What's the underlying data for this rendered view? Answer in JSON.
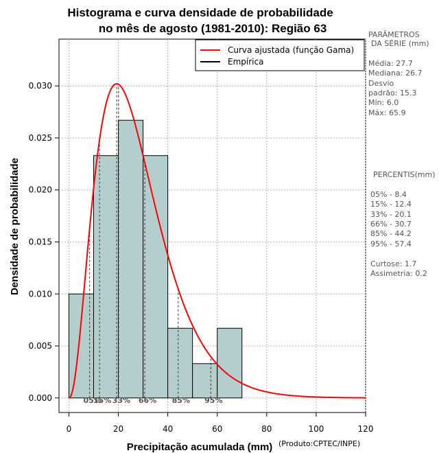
{
  "chart_data": {
    "type": "bar",
    "title": "Histograma e curva densidade de probabilidade",
    "subtitle": "no mês de agosto (1981-2010): Região 63",
    "xlabel": "Precipitação acumulada (mm)",
    "ylabel": "Densidade de probabilidade",
    "credit": "(Produto:CPTEC/INPE)",
    "xlim": [
      -4,
      120
    ],
    "ylim": [
      -0.0014,
      0.0345
    ],
    "xticks": [
      0,
      20,
      40,
      60,
      80,
      100,
      120
    ],
    "yticks": [
      0.0,
      0.005,
      0.01,
      0.015,
      0.02,
      0.025,
      0.03
    ],
    "ytick_labels": [
      "0.000",
      "0.005",
      "0.010",
      "0.015",
      "0.020",
      "0.025",
      "0.030"
    ],
    "grid": true,
    "bins": [
      {
        "x0": 0,
        "x1": 10,
        "density": 0.01
      },
      {
        "x0": 10,
        "x1": 20,
        "density": 0.0233
      },
      {
        "x0": 20,
        "x1": 30,
        "density": 0.0267
      },
      {
        "x0": 30,
        "x1": 40,
        "density": 0.0233
      },
      {
        "x0": 40,
        "x1": 50,
        "density": 0.0067
      },
      {
        "x0": 50,
        "x1": 60,
        "density": 0.0033
      },
      {
        "x0": 60,
        "x1": 70,
        "density": 0.0067
      }
    ],
    "gamma_fit": {
      "shape": 3.3,
      "scale": 8.4
    },
    "percentiles": [
      {
        "label": "05%",
        "value": 8.4
      },
      {
        "label": "15%",
        "value": 12.4
      },
      {
        "label": "33%",
        "value": 20.1
      },
      {
        "label": "66%",
        "value": 30.7
      },
      {
        "label": "85%",
        "value": 44.2
      },
      {
        "label": "95%",
        "value": 57.4
      }
    ],
    "legend": [
      {
        "label": "Curva ajustada (função Gama)",
        "color": "#ff0000"
      },
      {
        "label": "Empírica",
        "color": "#000000"
      }
    ],
    "legend_position": "top-right",
    "bar_color": "#b4cdcd",
    "curve_color": "#ff0000"
  },
  "side_panel": {
    "params_title_1": "PARÂMETROS",
    "params_title_2": "DA SÉRIE (mm)",
    "media": "Média:  27.7",
    "mediana": "Mediana:  26.7",
    "desvio_1": "Desvio",
    "desvio_2": "padrão:  15.3",
    "min": "Mín:  6.0",
    "max": "Máx:  65.9",
    "percentis_title": "PERCENTIS(mm)",
    "p05": "05% -  8.4",
    "p15": "15% -  12.4",
    "p33": "33% -  20.1",
    "p66": "66% -  30.7",
    "p85": "85% -  44.2",
    "p95": "95% -  57.4",
    "curtose": "Curtose:  1.7",
    "assimetria": "Assimetria:  0.2"
  }
}
